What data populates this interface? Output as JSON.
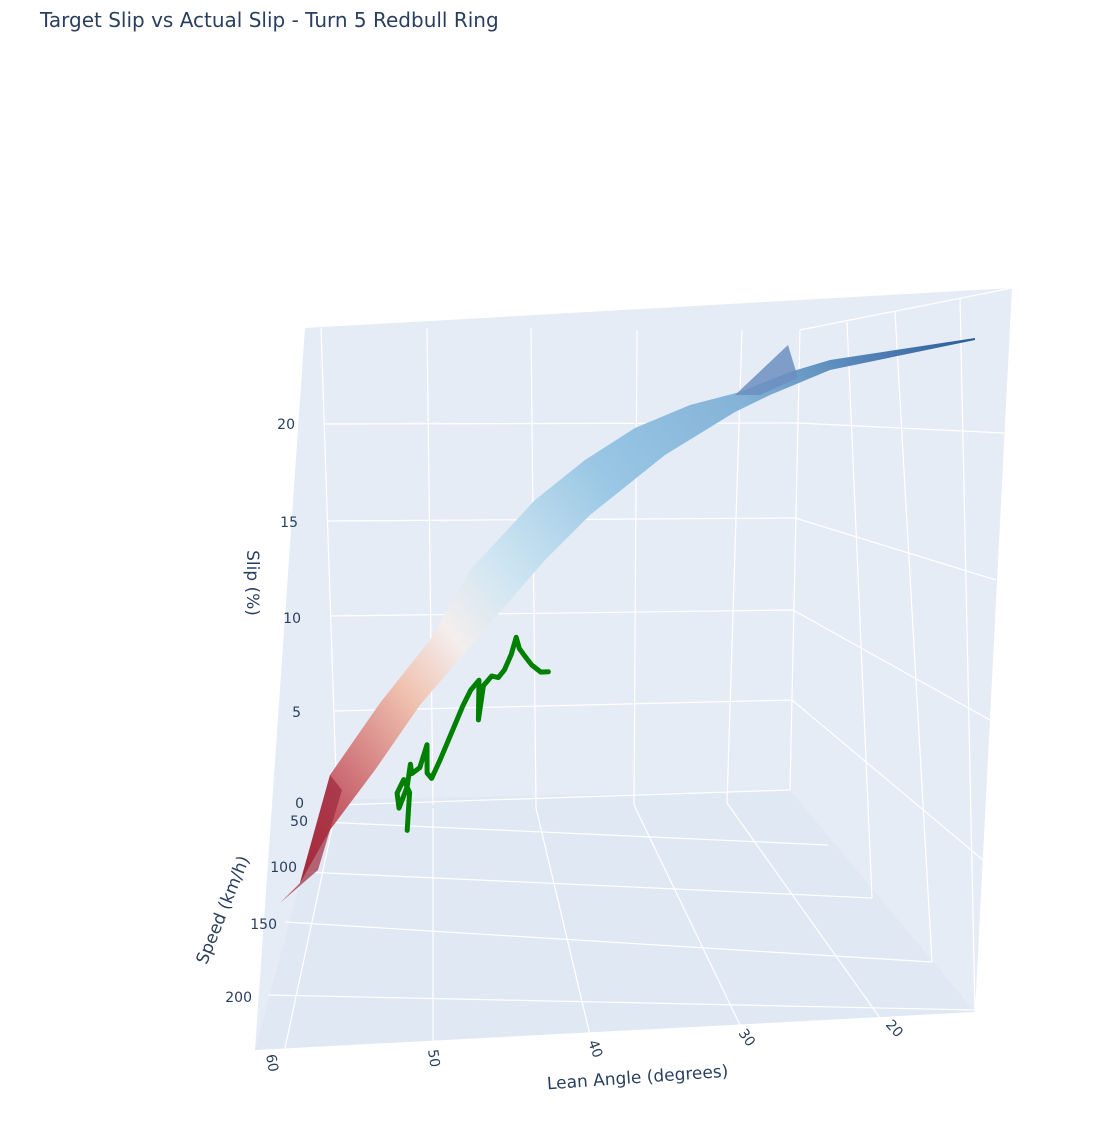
{
  "chart_data": {
    "type": "surface3d",
    "title": "Target Slip vs Actual Slip - Turn 5 Redbull Ring",
    "x_axis": {
      "label": "Lean Angle (degrees)",
      "ticks": [
        "60",
        "50",
        "40",
        "30",
        "20"
      ]
    },
    "y_axis": {
      "label": "Speed (km/h)",
      "ticks": [
        "50",
        "100",
        "150",
        "200"
      ]
    },
    "z_axis": {
      "label": "Slip (%)",
      "ticks": [
        "0",
        "5",
        "10",
        "15",
        "20"
      ],
      "range": [
        0,
        24
      ]
    },
    "colorscale": [
      "#b2182b",
      "#f4c9b4",
      "#f7f7f7",
      "#bcdcec",
      "#8fbfe0",
      "#2166ac"
    ],
    "surface_target_slip": {
      "lean": [
        60,
        58,
        56,
        54,
        52,
        50,
        48,
        46,
        44,
        42,
        40,
        38,
        36,
        34,
        32,
        30,
        28,
        26,
        24,
        22,
        20,
        18
      ],
      "slip": [
        0.3,
        1.2,
        2.3,
        3.6,
        5.0,
        6.5,
        8.0,
        9.5,
        11.0,
        12.5,
        14.0,
        15.3,
        16.5,
        17.6,
        18.6,
        19.5,
        20.3,
        21.0,
        21.6,
        22.1,
        22.5,
        22.8
      ]
    },
    "line_actual_slip": {
      "color": "#008000",
      "points": [
        {
          "lean": 52.5,
          "speed": 60,
          "slip": -1.5
        },
        {
          "lean": 52.5,
          "speed": 60,
          "slip": 0.5
        },
        {
          "lean": 53.2,
          "speed": 60,
          "slip": 1.2
        },
        {
          "lean": 53.8,
          "speed": 60,
          "slip": 0.5
        },
        {
          "lean": 53.5,
          "speed": 60,
          "slip": -0.3
        },
        {
          "lean": 52.8,
          "speed": 60,
          "slip": 0.8
        },
        {
          "lean": 52.6,
          "speed": 60,
          "slip": 2.0
        },
        {
          "lean": 52.4,
          "speed": 60,
          "slip": 1.5
        },
        {
          "lean": 51.6,
          "speed": 60,
          "slip": 1.8
        },
        {
          "lean": 51.0,
          "speed": 60,
          "slip": 3.0
        },
        {
          "lean": 50.8,
          "speed": 60,
          "slip": 1.5
        },
        {
          "lean": 50.3,
          "speed": 60,
          "slip": 1.2
        },
        {
          "lean": 49.5,
          "speed": 60,
          "slip": 2.2
        },
        {
          "lean": 48.5,
          "speed": 60,
          "slip": 3.6
        },
        {
          "lean": 47.5,
          "speed": 60,
          "slip": 5.0
        },
        {
          "lean": 46.8,
          "speed": 60,
          "slip": 5.8
        },
        {
          "lean": 46.0,
          "speed": 60,
          "slip": 6.3
        },
        {
          "lean": 45.8,
          "speed": 60,
          "slip": 4.2
        },
        {
          "lean": 45.5,
          "speed": 60,
          "slip": 6.0
        },
        {
          "lean": 44.7,
          "speed": 60,
          "slip": 6.5
        },
        {
          "lean": 44.0,
          "speed": 60,
          "slip": 6.4
        },
        {
          "lean": 43.4,
          "speed": 60,
          "slip": 6.8
        },
        {
          "lean": 42.8,
          "speed": 60,
          "slip": 7.6
        },
        {
          "lean": 42.4,
          "speed": 60,
          "slip": 8.5
        },
        {
          "lean": 42.0,
          "speed": 60,
          "slip": 7.9
        },
        {
          "lean": 41.4,
          "speed": 60,
          "slip": 7.5
        },
        {
          "lean": 40.6,
          "speed": 60,
          "slip": 7.0
        },
        {
          "lean": 39.6,
          "speed": 60,
          "slip": 6.6
        },
        {
          "lean": 38.8,
          "speed": 60,
          "slip": 6.6
        }
      ]
    }
  }
}
